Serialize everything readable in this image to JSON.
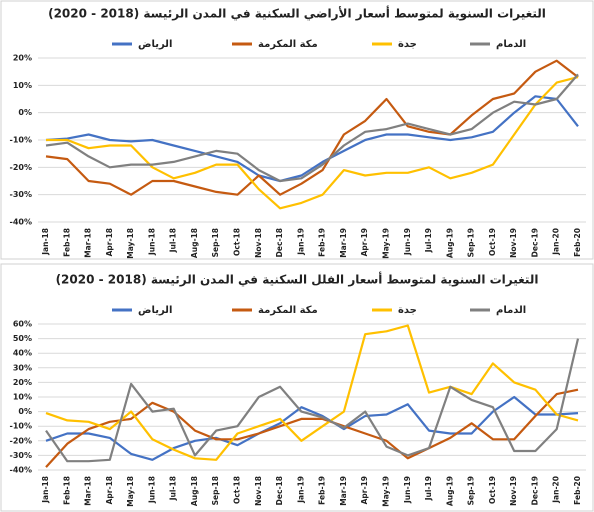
{
  "chart_data": [
    {
      "type": "line",
      "title": "التغيرات السنوية لمتوسط أسعار الأراضي السكنية في المدن الرئيسة (2018 - 2020)",
      "categories": [
        "Jan-18",
        "Feb-18",
        "Mar-18",
        "Apr-18",
        "May-18",
        "Jun-18",
        "Jul-18",
        "Aug-18",
        "Sep-18",
        "Oct-18",
        "Nov-18",
        "Dec-18",
        "Jan-19",
        "Feb-19",
        "Mar-19",
        "Apr-19",
        "May-19",
        "Jun-19",
        "Jul-19",
        "Aug-19",
        "Sep-19",
        "Oct-19",
        "Nov-19",
        "Dec-19",
        "Jan-20",
        "Feb-20"
      ],
      "series": [
        {
          "name": "الرياض",
          "color": "#4472c4",
          "values": [
            -10,
            -9.5,
            -8,
            -10,
            -10.5,
            -10,
            -12,
            -14,
            -16,
            -18,
            -23,
            -25,
            -23,
            -18,
            -14,
            -10,
            -8,
            -8,
            -9,
            -10,
            -9,
            -7,
            0,
            6,
            5,
            -5
          ]
        },
        {
          "name": "مكة المكرمة",
          "color": "#c55a11",
          "values": [
            -16,
            -17,
            -25,
            -26,
            -30,
            -25,
            -25,
            -27,
            -29,
            -30,
            -23,
            -30,
            -26,
            -21,
            -8,
            -3,
            5,
            -5,
            -7,
            -8,
            -1,
            5,
            7,
            15,
            19,
            13
          ]
        },
        {
          "name": "جدة",
          "color": "#ffc000",
          "values": [
            -10,
            -10,
            -13,
            -12,
            -12,
            -20,
            -24,
            -22,
            -19,
            -19,
            -28,
            -35,
            -33,
            -30,
            -21,
            -23,
            -22,
            -22,
            -20,
            -24,
            -22,
            -19,
            -8,
            3,
            11,
            13
          ]
        },
        {
          "name": "الدمام",
          "color": "#808080",
          "values": [
            -12,
            -11,
            -16,
            -20,
            -19,
            -19,
            -18,
            -16,
            -14,
            -15,
            -21,
            -25,
            -24,
            -19,
            -12,
            -7,
            -6,
            -4,
            -6,
            -8,
            -6,
            0,
            4,
            3,
            5,
            14
          ]
        }
      ],
      "ylim": [
        -40,
        20
      ],
      "yticks": [
        {
          "value": -40,
          "label": "-40%"
        },
        {
          "value": -30,
          "label": "-30%"
        },
        {
          "value": -20,
          "label": "-20%"
        },
        {
          "value": -10,
          "label": "-10%"
        },
        {
          "value": 0,
          "label": "0%"
        },
        {
          "value": 10,
          "label": "10%"
        },
        {
          "value": 20,
          "label": "20%"
        }
      ],
      "grid": true
    },
    {
      "type": "line",
      "title": "التغيرات السنوية لمتوسط أسعار الفلل السكنية في المدن الرئيسة (2018 - 2020)",
      "categories": [
        "Jan-18",
        "Feb-18",
        "Mar-18",
        "Apr-18",
        "May-18",
        "Jun-18",
        "Jul-18",
        "Aug-18",
        "Sep-18",
        "Oct-18",
        "Nov-18",
        "Dec-18",
        "Jan-19",
        "Feb-19",
        "Mar-19",
        "Apr-19",
        "May-19",
        "Jun-19",
        "Jul-19",
        "Aug-19",
        "Sep-19",
        "Oct-19",
        "Nov-19",
        "Dec-19",
        "Jan-20",
        "Feb-20"
      ],
      "series": [
        {
          "name": "الرياض",
          "color": "#4472c4",
          "values": [
            -20,
            -15,
            -15,
            -18,
            -29,
            -33,
            -25,
            -20,
            -18,
            -23,
            -15,
            -8,
            3,
            -3,
            -12,
            -3,
            -2,
            5,
            -13,
            -15,
            -15,
            0,
            10,
            -2,
            -2,
            -1
          ]
        },
        {
          "name": "مكة المكرمة",
          "color": "#c55a11",
          "values": [
            -38,
            -22,
            -12,
            -7,
            -5,
            6,
            0,
            -13,
            -19,
            -19,
            -15,
            -10,
            -5,
            -5,
            -10,
            -15,
            -20,
            -32,
            -25,
            -18,
            -8,
            -19,
            -19,
            -3,
            12,
            15
          ]
        },
        {
          "name": "جدة",
          "color": "#ffc000",
          "values": [
            -1,
            -6,
            -7,
            -12,
            0,
            -19,
            -26,
            -32,
            -33,
            -15,
            -10,
            -5,
            -20,
            -10,
            0,
            53,
            55,
            59,
            13,
            17,
            12,
            33,
            20,
            15,
            -2,
            -6
          ]
        },
        {
          "name": "الدمام",
          "color": "#808080",
          "values": [
            -13,
            -34,
            -34,
            -33,
            19,
            0,
            2,
            -30,
            -13,
            -10,
            10,
            17,
            0,
            -4,
            -11,
            0,
            -24,
            -30,
            -25,
            17,
            8,
            3,
            -27,
            -27,
            -12,
            50
          ]
        }
      ],
      "ylim": [
        -40,
        60
      ],
      "yticks": [
        {
          "value": -40,
          "label": "-40%"
        },
        {
          "value": -30,
          "label": "-30%"
        },
        {
          "value": -20,
          "label": "-20%"
        },
        {
          "value": -10,
          "label": "-10%"
        },
        {
          "value": 0,
          "label": "0%"
        },
        {
          "value": 10,
          "label": "10%"
        },
        {
          "value": 20,
          "label": "20%"
        },
        {
          "value": 30,
          "label": "30%"
        },
        {
          "value": 40,
          "label": "40%"
        },
        {
          "value": 50,
          "label": "50%"
        },
        {
          "value": 60,
          "label": "60%"
        }
      ],
      "grid": true
    }
  ]
}
